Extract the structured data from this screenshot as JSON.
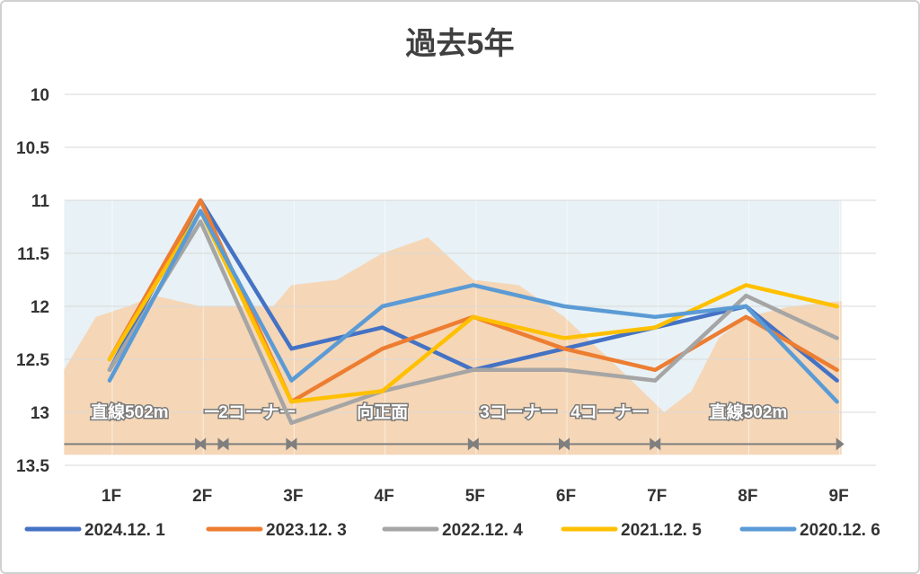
{
  "chart_data": {
    "type": "line",
    "title": "過去5年",
    "categories": [
      "1F",
      "2F",
      "3F",
      "4F",
      "5F",
      "6F",
      "7F",
      "8F",
      "9F"
    ],
    "ylim": [
      13.5,
      10
    ],
    "y_inverted": true,
    "yticks": [
      "10",
      "10.5",
      "11",
      "11.5",
      "12",
      "12.5",
      "13",
      "13.5"
    ],
    "grid": true,
    "legend_position": "bottom",
    "series": [
      {
        "name": "2024.12. 1",
        "color": "#4472c4",
        "values": [
          12.6,
          11.0,
          12.4,
          12.2,
          12.6,
          12.4,
          12.2,
          12.0,
          12.7
        ]
      },
      {
        "name": "2023.12. 3",
        "color": "#ed7d31",
        "values": [
          12.5,
          11.0,
          12.9,
          12.4,
          12.1,
          12.4,
          12.6,
          12.1,
          12.6
        ]
      },
      {
        "name": "2022.12. 4",
        "color": "#a5a5a5",
        "values": [
          12.6,
          11.2,
          13.1,
          12.8,
          12.6,
          12.6,
          12.7,
          11.9,
          12.3
        ]
      },
      {
        "name": "2021.12. 5",
        "color": "#ffc000",
        "values": [
          12.5,
          11.1,
          12.9,
          12.8,
          12.1,
          12.3,
          12.2,
          11.8,
          12.0
        ]
      },
      {
        "name": "2020.12. 6",
        "color": "#5b9bd5",
        "values": [
          12.7,
          11.1,
          12.7,
          12.0,
          11.8,
          12.0,
          12.1,
          12.0,
          12.9
        ]
      }
    ],
    "background_terrain": {
      "description_values_x": [
        0.5,
        0.85,
        1.2,
        1.5,
        2.0,
        2.3,
        2.8,
        3.0,
        3.5,
        4.0,
        4.5,
        5.0,
        5.5,
        6.0,
        6.5,
        6.8,
        7.1,
        7.4,
        7.7,
        8.0,
        8.5,
        9.05
      ],
      "description_values_y": [
        12.6,
        12.1,
        12.0,
        11.9,
        12.0,
        12.0,
        12.0,
        11.8,
        11.75,
        11.5,
        11.35,
        11.75,
        11.8,
        12.1,
        12.5,
        12.75,
        13.0,
        12.8,
        12.3,
        12.1,
        12.0,
        11.95
      ],
      "sky_color": "#e8f1f5",
      "ground_color": "#f5d6b6"
    },
    "sections": [
      {
        "label": "直線502m",
        "from": 0.5,
        "to": 2.0
      },
      {
        "label": "ー",
        "from": 2.0,
        "to": 2.25
      },
      {
        "label": "2コーナー",
        "from": 2.25,
        "to": 3.0
      },
      {
        "label": "向正面",
        "from": 3.0,
        "to": 5.0
      },
      {
        "label": "3コーナー",
        "from": 5.0,
        "to": 6.0
      },
      {
        "label": "4コーナー",
        "from": 6.0,
        "to": 7.0
      },
      {
        "label": "直線502m",
        "from": 7.0,
        "to": 9.05
      }
    ]
  }
}
